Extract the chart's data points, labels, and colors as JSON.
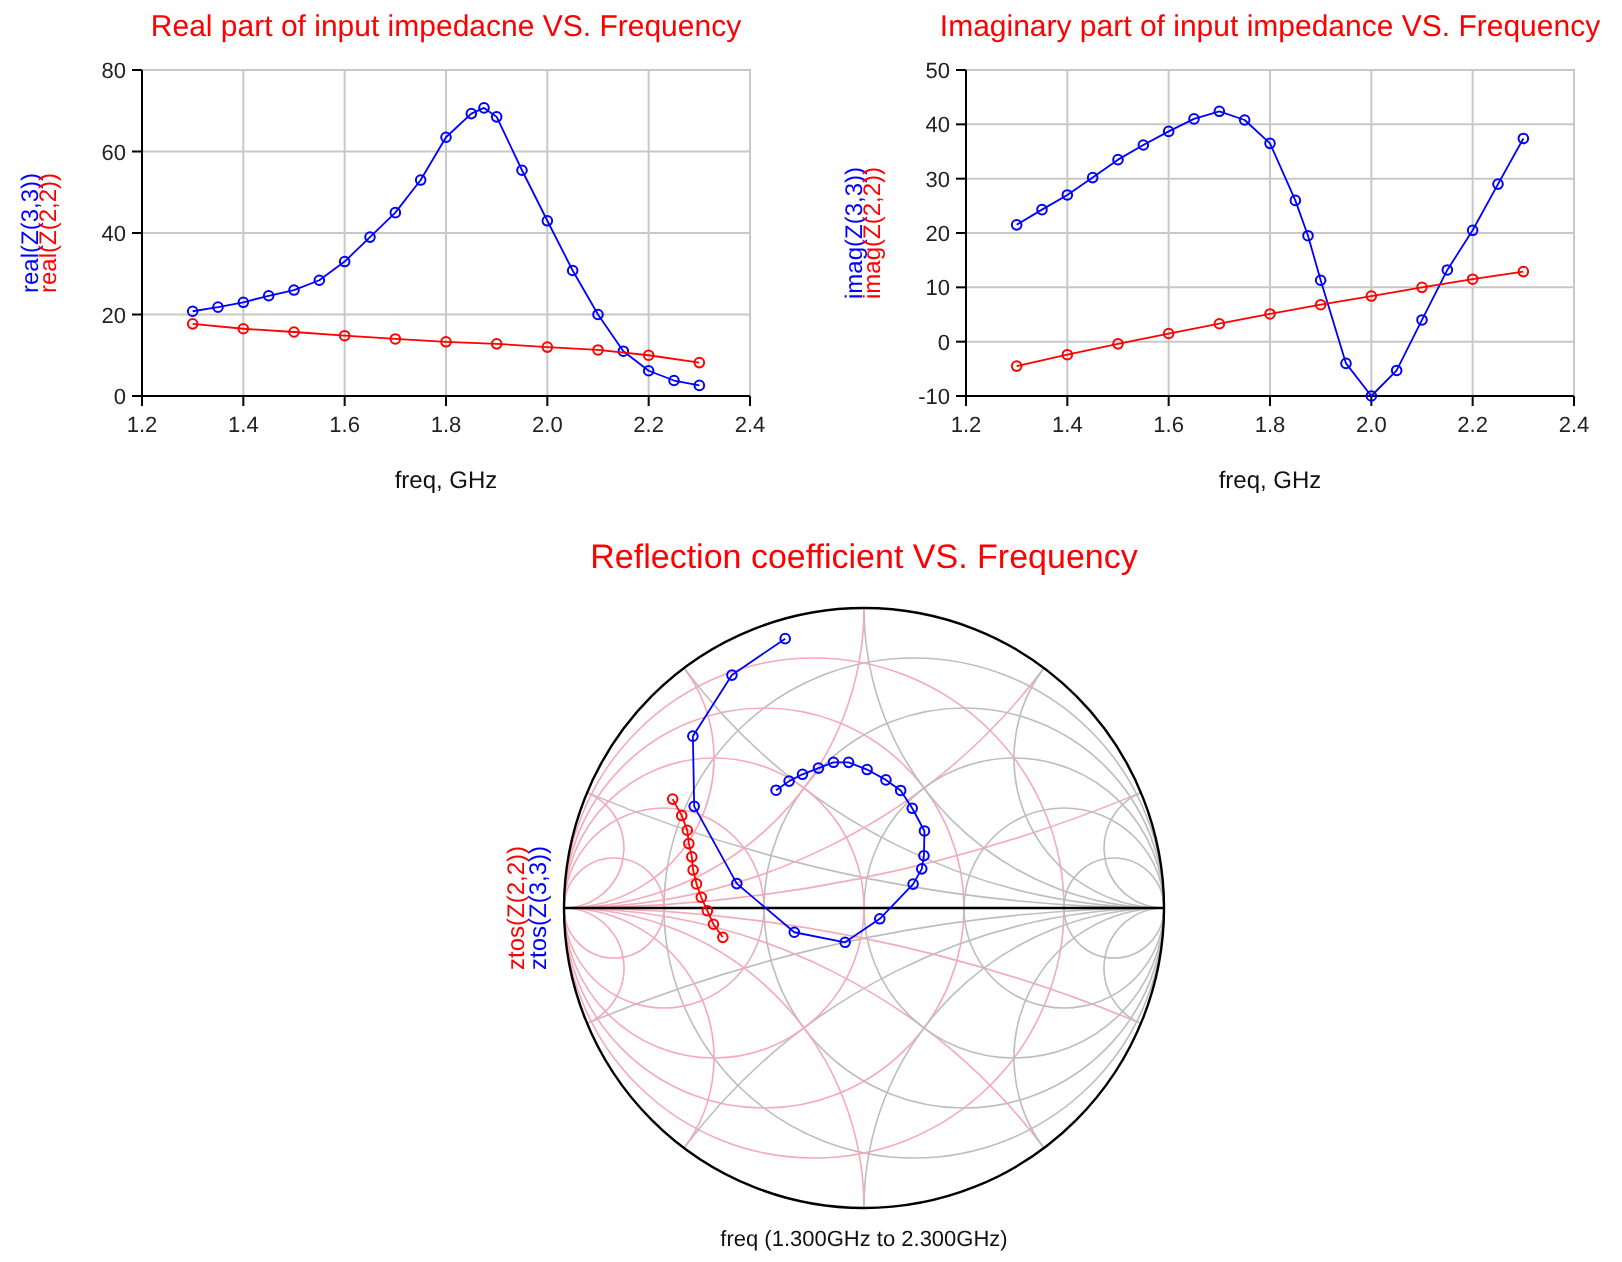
{
  "chart_data": [
    {
      "type": "line",
      "title": "Real part of input impedacne VS. Frequency",
      "xlabel": "freq, GHz",
      "xlim": [
        1.2,
        2.4
      ],
      "xticks": [
        1.2,
        1.4,
        1.6,
        1.8,
        {
          "value": 2,
          "label": "2.0"
        },
        2.2,
        2.4
      ],
      "ylim": [
        0,
        80
      ],
      "yticks": [
        0,
        20,
        40,
        60,
        80
      ],
      "grid": true,
      "marker": "circle",
      "series": [
        {
          "name": "real(Z(3,3))",
          "color": "#0000ff",
          "x": [
            1.3,
            1.35,
            1.4,
            1.45,
            1.5,
            1.55,
            1.6,
            1.65,
            1.7,
            1.75,
            1.8,
            1.85,
            1.875,
            1.9,
            1.95,
            2.0,
            2.05,
            2.1,
            2.15,
            2.2,
            2.25,
            2.3
          ],
          "values": [
            20.8,
            21.8,
            23,
            24.6,
            26,
            28.4,
            33,
            39,
            45,
            53,
            63.5,
            69.3,
            70.7,
            68.5,
            55.4,
            43,
            30.8,
            20,
            11,
            6.2,
            3.8,
            2.6
          ]
        },
        {
          "name": "real(Z(2,2))",
          "color": "#ff0000",
          "x": [
            1.3,
            1.4,
            1.5,
            1.6,
            1.7,
            1.8,
            1.9,
            2.0,
            2.1,
            2.2,
            2.3
          ],
          "values": [
            17.7,
            16.5,
            15.7,
            14.8,
            14,
            13.3,
            12.8,
            12,
            11.3,
            10,
            8.2
          ]
        }
      ]
    },
    {
      "type": "line",
      "title": "Imaginary part of input impedance VS. Frequency",
      "xlabel": "freq, GHz",
      "xlim": [
        1.2,
        2.4
      ],
      "xticks": [
        1.2,
        1.4,
        1.6,
        1.8,
        {
          "value": 2,
          "label": "2.0"
        },
        2.2,
        2.4
      ],
      "ylim": [
        -10,
        50
      ],
      "yticks": [
        -10,
        0,
        10,
        20,
        30,
        40,
        50
      ],
      "grid": true,
      "marker": "circle",
      "series": [
        {
          "name": "imag(Z(3,3))",
          "color": "#0000ff",
          "x": [
            1.3,
            1.35,
            1.4,
            1.45,
            1.5,
            1.55,
            1.6,
            1.65,
            1.7,
            1.75,
            1.8,
            1.85,
            1.875,
            1.9,
            1.95,
            2.0,
            2.05,
            2.1,
            2.15,
            2.2,
            2.25,
            2.3
          ],
          "values": [
            21.5,
            24.3,
            27,
            30.2,
            33.5,
            36.2,
            38.7,
            41,
            42.4,
            40.8,
            36.5,
            26,
            19.5,
            11.3,
            -4,
            -10,
            -5.3,
            4,
            13.2,
            20.5,
            29,
            37.4
          ]
        },
        {
          "name": "imag(Z(2,2))",
          "color": "#ff0000",
          "x": [
            1.3,
            1.4,
            1.5,
            1.6,
            1.7,
            1.8,
            1.9,
            2.0,
            2.1,
            2.2,
            2.3
          ],
          "values": [
            -4.5,
            -2.4,
            -0.4,
            1.5,
            3.3,
            5.1,
            6.8,
            8.4,
            10,
            11.5,
            12.9
          ]
        }
      ]
    },
    {
      "type": "other",
      "title": "Reflection coefficient VS. Frequency",
      "xlabel": "freq (1.300GHz to 2.300GHz)",
      "series": [
        {
          "name": "ztos(Z(2,2))",
          "color": "#ff0000"
        },
        {
          "name": "ztos(Z(3,3))",
          "color": "#0000ff"
        }
      ]
    }
  ]
}
